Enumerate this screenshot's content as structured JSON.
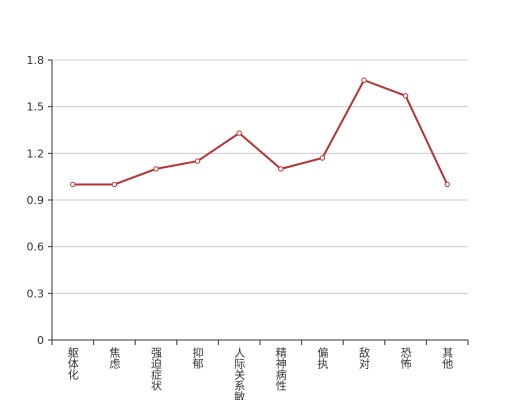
{
  "chart_data": {
    "type": "line",
    "categories": [
      "躯体化",
      "焦虑",
      "强迫症状",
      "抑郁",
      "人际关系敏感",
      "精神病性",
      "偏执",
      "敌对",
      "恐怖",
      "其他"
    ],
    "values": [
      1.0,
      1.0,
      1.1,
      1.15,
      1.33,
      1.1,
      1.17,
      1.67,
      1.57,
      1.0
    ],
    "color": "#b83333",
    "ylim": [
      0,
      1.8
    ],
    "yticks": [
      0,
      0.3,
      0.6,
      0.9,
      1.2,
      1.5,
      1.8
    ],
    "grid": true
  }
}
